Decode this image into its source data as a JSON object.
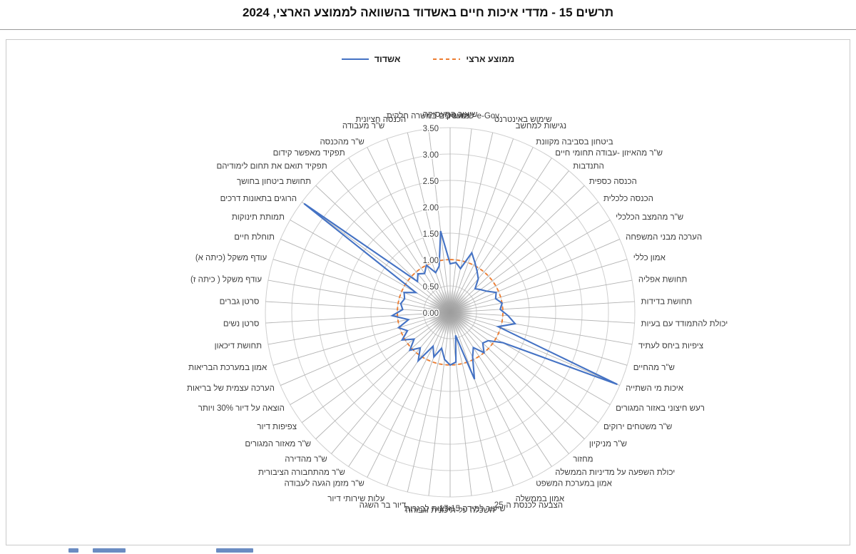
{
  "title": "תרשים 15 - מדדי איכות חיים באשדוד בהשוואה לממוצע הארצי, 2024",
  "colors": {
    "city_line": "#4472C4",
    "national_line": "#ED7D31",
    "grid_ring": "#cfcfcf",
    "grid_spoke": "#b3b3b3",
    "label_text": "#3f3f3f"
  },
  "chart_data": {
    "type": "radar",
    "title": "תרשים 15 - מדדי איכות חיים באשדוד בהשוואה לממוצע הארצי, 2024",
    "legend_position": "top",
    "grid": true,
    "radial_axis": {
      "min": 0,
      "max": 3.5,
      "step": 0.5,
      "tick_labels": [
        "0.00",
        "0.50",
        "1.00",
        "1.50",
        "2.00",
        "2.50",
        "3.00",
        "3.50"
      ]
    },
    "categories": [
      "שיעור התעסוקה",
      "שימוש ב-e-Gov",
      "שימוש באינטרנט",
      "נגישות למחשב",
      "ביטחון בסביבה מקוונת",
      "ש\"ר מהאיזון -עבודה תחומי חיים",
      "התנדבות",
      "הכנסה כספית",
      "הכנסה כלכלית",
      "ש\"ר מהמצב הכלכלי",
      "הערכה מבני המשפחה",
      "אמון כללי",
      "תחושת אפליה",
      "תחושת בדידות",
      "יכולת להתמודד עם בעיות",
      "ציפיות ביחס לעתיד",
      "ש\"ר מהחיים",
      "איכות מי השתייה",
      "רעש חיצוני באזור המגורים",
      "ש\"ר משטחים ירוקים",
      "ש\"ר מניקיון",
      "מחזור",
      "יכולת השפעה על מדיניות הממשלה",
      "אמון במערכת המשפט",
      "אמון בממשלה",
      "הצבעה לכנסת ה-25",
      "שיעור למידה 17-15",
      "השכלה על-תיכונית וגבוהה",
      "זכאות לבגרות",
      "דיור בר השגה",
      "עלות שירותי דיור",
      "ש\"ר מזמן הגעה לעבודה",
      "ש\"ר מהתחבורה הציבורית",
      "ש\"ר מהדירה",
      "ש\"ר מאזור המגורים",
      "צפיפות דיור",
      "הוצאה על דיור 30% ויותר",
      "הערכה עצמית של בריאות",
      "אמון במערכת הבריאות",
      "תחושת דיכאון",
      "סרטן נשים",
      "סרטן גברים",
      "עודף משקל ( כיתה ז)",
      "עודף משקל (כיתה א)",
      "תוחלת חיים",
      "תמותת תינוקות",
      "הרוגים בתאונות דרכים",
      "תחושת ביטחון בחושך",
      "תפקיד תואם את תחום לימודיהם",
      "תפקיד מאפשר קידום",
      "ש\"ר מהכנסה",
      "ש\"ר מעבודה",
      "הכנסה חציונית",
      "מועסקים במשרה חלקית"
    ],
    "series": [
      {
        "name": "אשדוד",
        "color": "#4472C4",
        "style": "solid",
        "values": [
          0.92,
          0.95,
          0.85,
          1.2,
          1.05,
          0.93,
          0.83,
          0.65,
          0.72,
          0.8,
          0.95,
          0.9,
          1.0,
          0.95,
          1.1,
          1.25,
          0.95,
          3.45,
          1.15,
          0.9,
          0.85,
          1.0,
          0.8,
          0.95,
          1.35,
          0.45,
          0.95,
          1.0,
          0.9,
          0.7,
          0.9,
          0.72,
          1.1,
          0.88,
          1.05,
          0.85,
          1.05,
          0.88,
          1.02,
          0.8,
          1.1,
          0.9,
          0.95,
          0.9,
          0.95,
          0.75,
          3.45,
          0.85,
          0.95,
          0.88,
          1.0,
          0.8,
          0.9,
          1.55
        ]
      },
      {
        "name": "ממוצע ארצי",
        "color": "#ED7D31",
        "style": "dashed",
        "values": [
          1,
          1,
          1,
          1,
          1,
          1,
          1,
          1,
          1,
          1,
          1,
          1,
          1,
          1,
          1,
          1,
          1,
          1,
          1,
          1,
          1,
          1,
          1,
          1,
          1,
          1,
          1,
          1,
          1,
          1,
          1,
          1,
          1,
          1,
          1,
          1,
          1,
          1,
          1,
          1,
          1,
          1,
          1,
          1,
          1,
          1,
          1,
          1,
          1,
          1,
          1,
          1,
          1,
          1
        ]
      }
    ]
  }
}
